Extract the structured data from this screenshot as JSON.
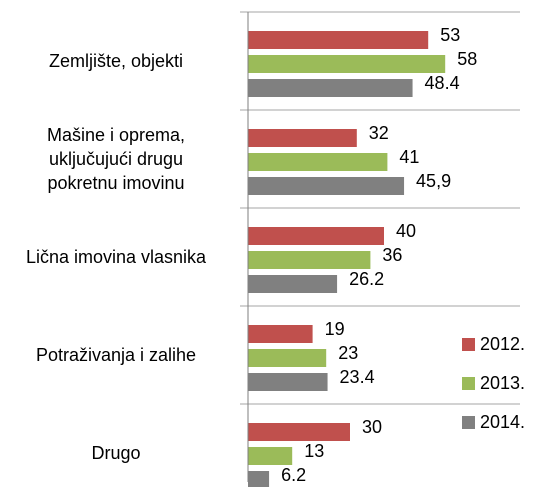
{
  "chart_data": {
    "type": "bar",
    "orientation": "horizontal",
    "categories": [
      "Zemljište, objekti",
      "Mašine i oprema,\nuključujući drugu\npokretnu imovinu",
      "Lična imovina vlasnika",
      "Potraživanja i zalihe",
      "Drugo"
    ],
    "series": [
      {
        "name": "2012.",
        "color": "#c0504d",
        "values": [
          53,
          32,
          40,
          19,
          30
        ]
      },
      {
        "name": "2013.",
        "color": "#9bbb59",
        "values": [
          58,
          41,
          36,
          23,
          13
        ]
      },
      {
        "name": "2014.",
        "color": "#808080",
        "values": [
          48.4,
          45.9,
          26.2,
          23.4,
          6.2
        ],
        "value_labels": [
          "48.4",
          "45,9",
          "26.2",
          "23.4",
          "6.2"
        ]
      }
    ],
    "xlim": [
      0,
      80
    ],
    "legend": "right"
  }
}
